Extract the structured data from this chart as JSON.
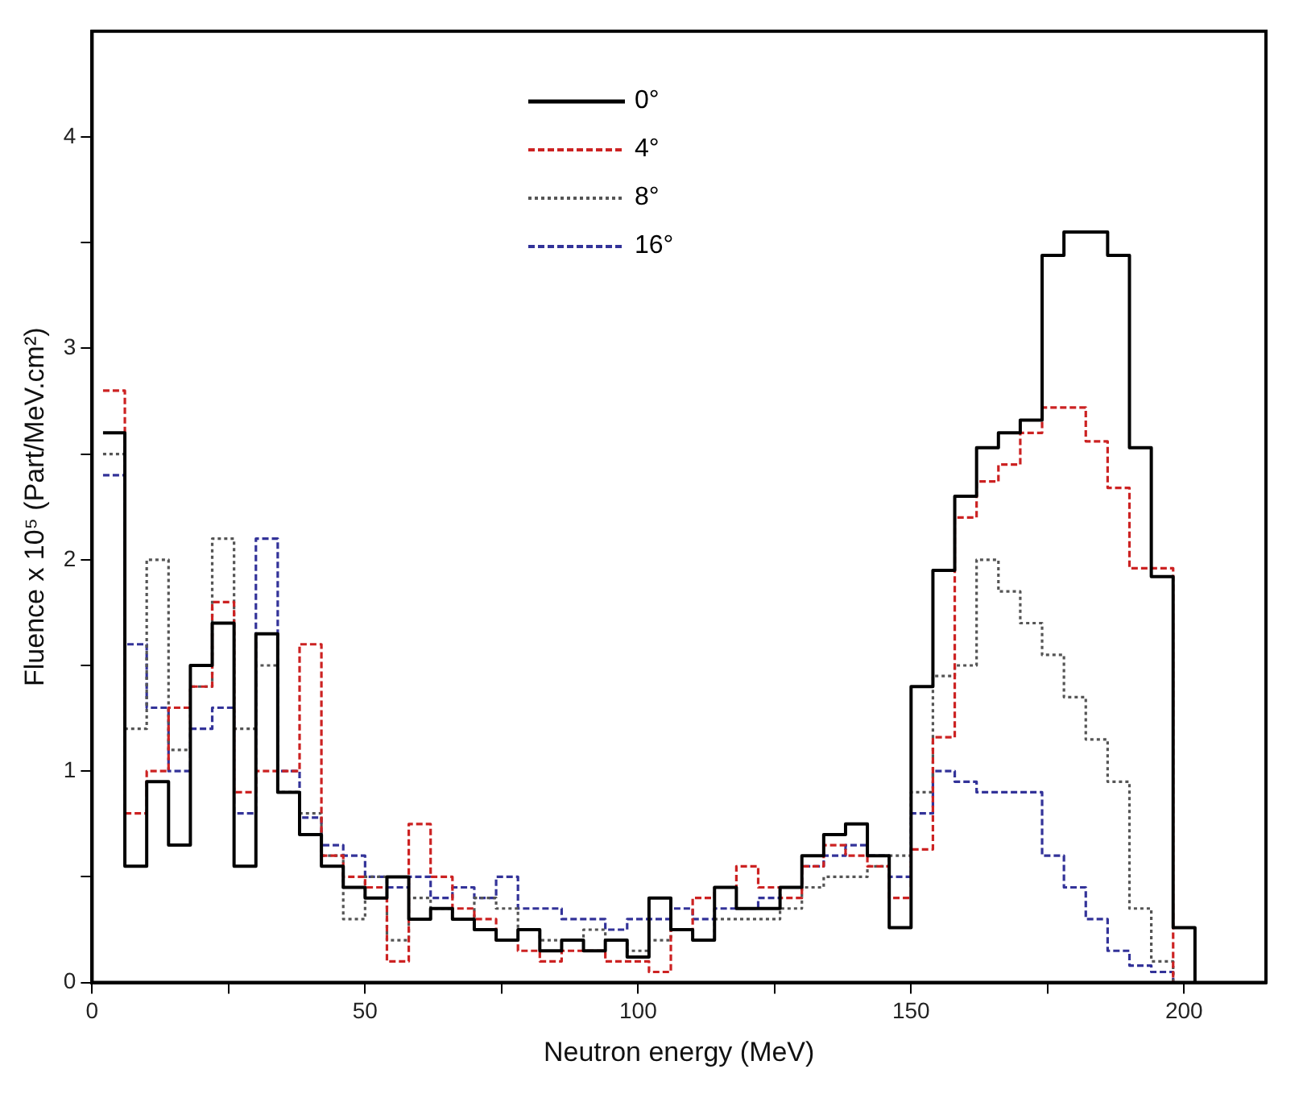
{
  "chart_data": {
    "type": "step",
    "xlabel": "Neutron energy (MeV)",
    "ylabel": "Fluence x 10⁵ (Part/MeV.cm²)",
    "x": [
      2,
      6,
      10,
      14,
      18,
      22,
      26,
      30,
      34,
      38,
      42,
      46,
      50,
      54,
      58,
      62,
      66,
      70,
      74,
      78,
      82,
      86,
      90,
      94,
      98,
      102,
      106,
      110,
      114,
      118,
      122,
      126,
      130,
      134,
      138,
      142,
      146,
      150,
      154,
      158,
      162,
      166,
      170,
      174,
      178,
      182,
      186,
      190,
      194,
      198,
      202
    ],
    "series": [
      {
        "name": "0°",
        "color": "#000000",
        "line_style": "solid",
        "values": [
          2.6,
          0.55,
          0.95,
          0.65,
          1.5,
          1.7,
          0.55,
          1.65,
          0.9,
          0.7,
          0.55,
          0.45,
          0.4,
          0.5,
          0.3,
          0.35,
          0.3,
          0.25,
          0.2,
          0.25,
          0.15,
          0.2,
          0.15,
          0.2,
          0.12,
          0.4,
          0.25,
          0.2,
          0.45,
          0.35,
          0.35,
          0.45,
          0.6,
          0.7,
          0.75,
          0.6,
          0.26,
          1.4,
          1.95,
          2.3,
          2.53,
          2.6,
          2.66,
          3.44,
          3.55,
          3.55,
          3.44,
          2.53,
          1.92,
          0.26,
          0
        ]
      },
      {
        "name": "4°",
        "color": "#cc2222",
        "line_style": "dashed",
        "values": [
          2.8,
          0.8,
          1.0,
          1.3,
          1.4,
          1.8,
          0.9,
          1.0,
          1.0,
          1.6,
          0.6,
          0.5,
          0.45,
          0.1,
          0.75,
          0.5,
          0.35,
          0.3,
          0.2,
          0.15,
          0.1,
          0.15,
          0.15,
          0.1,
          0.1,
          0.05,
          0.25,
          0.4,
          0.45,
          0.55,
          0.45,
          0.4,
          0.55,
          0.65,
          0.6,
          0.55,
          0.4,
          0.63,
          1.16,
          2.2,
          2.37,
          2.45,
          2.6,
          2.72,
          2.72,
          2.56,
          2.34,
          1.96,
          1.96,
          0,
          0
        ]
      },
      {
        "name": "8°",
        "color": "#555555",
        "line_style": "dotted",
        "values": [
          2.5,
          1.2,
          2.0,
          1.1,
          1.4,
          2.1,
          1.2,
          1.5,
          0.9,
          0.8,
          0.6,
          0.3,
          0.5,
          0.2,
          0.4,
          0.35,
          0.3,
          0.4,
          0.35,
          0.25,
          0.2,
          0.2,
          0.25,
          0.2,
          0.15,
          0.2,
          0.25,
          0.2,
          0.3,
          0.3,
          0.3,
          0.35,
          0.45,
          0.5,
          0.5,
          0.55,
          0.6,
          0.9,
          1.45,
          1.5,
          2.0,
          1.85,
          1.7,
          1.55,
          1.35,
          1.15,
          0.95,
          0.35,
          0.1,
          0,
          0
        ]
      },
      {
        "name": "16°",
        "color": "#333399",
        "line_style": "dashed",
        "values": [
          2.4,
          1.6,
          1.3,
          1.0,
          1.2,
          1.3,
          0.8,
          2.1,
          1.0,
          0.78,
          0.65,
          0.6,
          0.5,
          0.45,
          0.5,
          0.4,
          0.45,
          0.4,
          0.5,
          0.35,
          0.35,
          0.3,
          0.3,
          0.25,
          0.3,
          0.3,
          0.35,
          0.3,
          0.35,
          0.35,
          0.4,
          0.45,
          0.55,
          0.6,
          0.65,
          0.6,
          0.5,
          0.8,
          1.0,
          0.95,
          0.9,
          0.9,
          0.9,
          0.6,
          0.45,
          0.3,
          0.15,
          0.08,
          0.05,
          0,
          0
        ]
      }
    ],
    "xlim": [
      0,
      215
    ],
    "xticks": [
      0,
      {
        "value": 25,
        "label": null
      },
      50,
      {
        "value": 75,
        "label": null
      },
      100,
      {
        "value": 125,
        "label": null
      },
      150,
      {
        "value": 175,
        "label": null
      },
      200
    ],
    "ylim": [
      0,
      4.5
    ],
    "yticks": [
      0,
      {
        "value": 0.5,
        "label": null
      },
      1,
      {
        "value": 1.5,
        "label": null
      },
      2,
      {
        "value": 2.5,
        "label": null
      },
      3,
      {
        "value": 3.5,
        "label": null
      },
      4
    ],
    "grid": false,
    "legend": "top",
    "marker": "none"
  }
}
